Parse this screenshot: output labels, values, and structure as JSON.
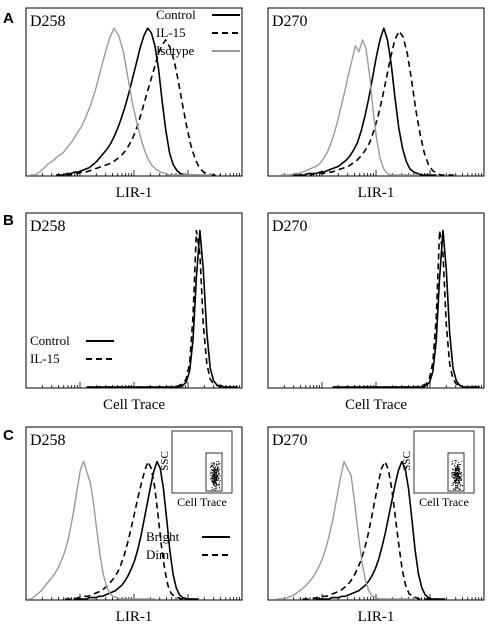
{
  "chart_data": [
    {
      "type": "line",
      "panel": "A",
      "title": "D258",
      "xlabel": "LIR-1",
      "xscale": "log",
      "legend_position": "top-right",
      "series": [
        {
          "name": "Control",
          "style": "solid-black",
          "values": [
            0,
            0,
            0,
            1,
            1,
            2,
            2,
            3,
            4,
            5,
            7,
            9,
            12,
            15,
            18,
            22,
            27,
            33,
            40,
            48,
            57,
            67,
            77,
            87,
            95,
            100,
            97,
            88,
            72,
            50,
            30,
            15,
            7,
            3,
            1,
            0,
            0,
            0,
            0,
            0
          ]
        },
        {
          "name": "IL-15",
          "style": "dashed-black",
          "values": [
            0,
            0,
            0,
            0,
            1,
            1,
            2,
            2,
            3,
            4,
            5,
            6,
            7,
            8,
            10,
            12,
            15,
            19,
            24,
            31,
            40,
            50,
            60,
            70,
            80,
            88,
            92,
            87,
            78,
            64,
            48,
            33,
            20,
            11,
            5,
            2,
            1,
            0,
            0,
            0
          ]
        },
        {
          "name": "Isotype",
          "style": "solid-gray",
          "values": [
            0,
            0,
            2,
            5,
            8,
            10,
            13,
            15,
            19,
            23,
            28,
            33,
            40,
            48,
            58,
            70,
            82,
            93,
            100,
            95,
            84,
            66,
            48,
            34,
            22,
            13,
            7,
            4,
            2,
            1,
            0,
            0,
            0,
            0,
            0,
            0,
            0,
            0,
            0,
            0
          ]
        }
      ]
    },
    {
      "type": "line",
      "panel": "A",
      "title": "D270",
      "xlabel": "LIR-1",
      "xscale": "log",
      "series": [
        {
          "name": "Control",
          "style": "solid-black",
          "values": [
            0,
            0,
            0,
            0,
            0,
            1,
            1,
            1,
            2,
            2,
            3,
            4,
            5,
            6,
            8,
            10,
            13,
            17,
            22,
            30,
            40,
            52,
            66,
            80,
            92,
            100,
            92,
            75,
            52,
            32,
            18,
            9,
            4,
            2,
            1,
            0,
            0,
            0,
            0,
            0
          ]
        },
        {
          "name": "IL-15",
          "style": "dashed-black",
          "values": [
            0,
            0,
            0,
            0,
            0,
            0,
            1,
            1,
            1,
            2,
            2,
            3,
            4,
            5,
            6,
            8,
            10,
            13,
            17,
            22,
            30,
            40,
            52,
            66,
            80,
            92,
            98,
            94,
            82,
            64,
            44,
            28,
            15,
            7,
            3,
            1,
            0,
            0,
            0,
            0
          ]
        },
        {
          "name": "Isotype",
          "style": "solid-gray",
          "values": [
            0,
            0,
            0,
            0,
            1,
            1,
            2,
            3,
            4,
            5,
            6,
            8,
            11,
            15,
            21,
            28,
            37,
            47,
            57,
            68,
            78,
            88,
            84,
            92,
            86,
            68,
            44,
            24,
            11,
            4,
            1,
            0,
            0,
            0,
            0,
            0,
            0,
            0,
            0,
            0
          ]
        }
      ]
    },
    {
      "type": "line",
      "panel": "B",
      "title": "D258",
      "xlabel": "Cell Trace",
      "xscale": "log",
      "legend_position": "bottom-left",
      "series": [
        {
          "name": "Control",
          "style": "solid-black",
          "values": [
            0,
            0,
            0,
            0,
            0,
            0,
            0,
            0,
            0,
            0,
            0,
            0,
            0,
            0,
            0,
            0,
            0,
            0,
            0,
            0,
            0,
            0,
            0,
            0,
            0,
            0,
            0,
            0,
            1,
            3,
            10,
            30,
            70,
            100,
            75,
            35,
            12,
            4,
            1,
            1,
            0,
            0,
            0,
            0,
            0
          ]
        },
        {
          "name": "IL-15",
          "style": "dashed-black",
          "values": [
            0,
            0,
            0,
            0,
            0,
            0,
            0,
            0,
            0,
            0,
            0,
            0,
            0,
            0,
            0,
            0,
            0,
            0,
            0,
            0,
            0,
            0,
            0,
            0,
            0,
            0,
            0,
            1,
            2,
            5,
            15,
            45,
            100,
            85,
            40,
            15,
            5,
            2,
            1,
            0,
            0,
            0,
            0,
            0,
            0
          ]
        }
      ]
    },
    {
      "type": "line",
      "panel": "B",
      "title": "D270",
      "xlabel": "Cell Trace",
      "xscale": "log",
      "series": [
        {
          "name": "Control",
          "style": "solid-black",
          "values": [
            0,
            0,
            0,
            0,
            0,
            0,
            0,
            0,
            0,
            0,
            0,
            0,
            0,
            0,
            0,
            0,
            0,
            0,
            0,
            0,
            0,
            0,
            0,
            0,
            0,
            0,
            0,
            0,
            1,
            3,
            10,
            30,
            70,
            100,
            75,
            35,
            12,
            4,
            1,
            0,
            0,
            0,
            0,
            0,
            0
          ]
        },
        {
          "name": "IL-15",
          "style": "dashed-black",
          "values": [
            0,
            0,
            0,
            0,
            0,
            0,
            0,
            0,
            0,
            0,
            0,
            0,
            0,
            0,
            0,
            0,
            0,
            0,
            0,
            0,
            0,
            0,
            0,
            0,
            0,
            0,
            0,
            1,
            2,
            6,
            16,
            45,
            100,
            85,
            40,
            15,
            5,
            2,
            1,
            0,
            0,
            0,
            0,
            0,
            0
          ]
        }
      ]
    },
    {
      "type": "line",
      "panel": "C",
      "title": "D258",
      "xlabel": "LIR-1",
      "xscale": "log",
      "legend_position": "bottom-right",
      "inset": {
        "xlabel": "Cell Trace",
        "ylabel": "SSC"
      },
      "series": [
        {
          "name": "Bright",
          "style": "solid-black",
          "values": [
            0,
            0,
            0,
            0,
            0,
            1,
            1,
            1,
            2,
            2,
            3,
            4,
            5,
            6,
            8,
            10,
            13,
            17,
            22,
            28,
            36,
            46,
            58,
            70,
            82,
            93,
            100,
            95,
            80,
            58,
            35,
            18,
            8,
            3,
            1,
            0,
            0,
            0,
            0,
            0
          ]
        },
        {
          "name": "Dim",
          "style": "dashed-black",
          "values": [
            0,
            0,
            0,
            0,
            1,
            1,
            2,
            2,
            3,
            4,
            5,
            6,
            8,
            10,
            13,
            16,
            20,
            26,
            33,
            42,
            52,
            63,
            74,
            84,
            93,
            100,
            95,
            82,
            62,
            40,
            22,
            10,
            4,
            2,
            1,
            0,
            0,
            0,
            0,
            0
          ]
        },
        {
          "name": "",
          "style": "solid-gray",
          "values": [
            0,
            0,
            2,
            4,
            6,
            9,
            12,
            15,
            18,
            22,
            27,
            33,
            41,
            52,
            65,
            80,
            94,
            100,
            92,
            85,
            70,
            50,
            32,
            18,
            9,
            4,
            2,
            1,
            0,
            0,
            0,
            0,
            0,
            0,
            0,
            0,
            0,
            0,
            0,
            0
          ]
        }
      ]
    },
    {
      "type": "line",
      "panel": "C",
      "title": "D270",
      "xlabel": "LIR-1",
      "xscale": "log",
      "inset": {
        "xlabel": "Cell Trace",
        "ylabel": "SSC"
      },
      "series": [
        {
          "name": "Bright",
          "style": "solid-black",
          "values": [
            0,
            0,
            0,
            0,
            0,
            1,
            1,
            1,
            2,
            2,
            3,
            4,
            5,
            6,
            8,
            10,
            13,
            17,
            22,
            29,
            38,
            48,
            60,
            72,
            84,
            94,
            100,
            95,
            80,
            58,
            35,
            18,
            8,
            3,
            1,
            0,
            0,
            0,
            0,
            0
          ]
        },
        {
          "name": "Dim",
          "style": "dashed-black",
          "values": [
            0,
            0,
            0,
            0,
            1,
            1,
            2,
            2,
            3,
            4,
            5,
            6,
            8,
            10,
            13,
            17,
            22,
            28,
            36,
            46,
            58,
            71,
            84,
            95,
            100,
            94,
            80,
            60,
            40,
            22,
            10,
            4,
            2,
            1,
            0,
            0,
            0,
            0,
            0,
            0
          ]
        },
        {
          "name": "",
          "style": "solid-gray",
          "values": [
            0,
            0,
            0,
            1,
            2,
            3,
            5,
            7,
            9,
            12,
            15,
            19,
            24,
            30,
            38,
            48,
            60,
            74,
            88,
            100,
            95,
            90,
            70,
            48,
            28,
            14,
            6,
            2,
            1,
            0,
            0,
            0,
            0,
            0,
            0,
            0,
            0,
            0,
            0,
            0
          ]
        }
      ]
    }
  ],
  "panel_letters": [
    "A",
    "B",
    "C"
  ]
}
